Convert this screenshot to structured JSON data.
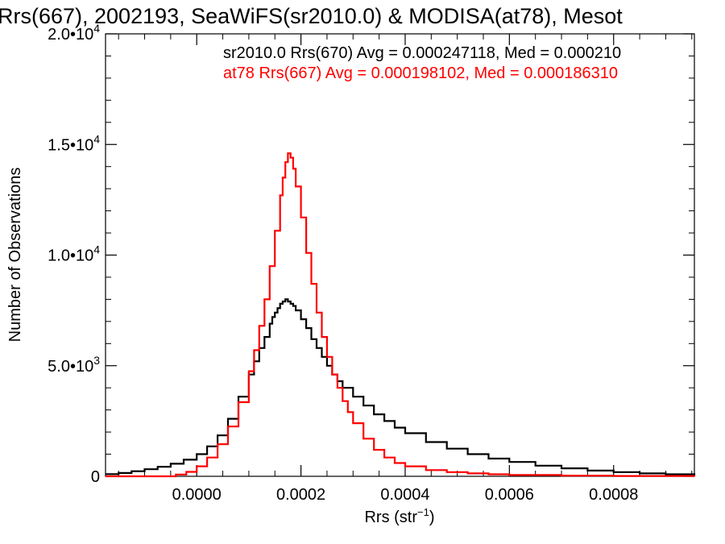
{
  "chart_data": {
    "type": "line",
    "title": "Rrs(667), 2002193, SeaWiFS(sr2010.0) & MODISA(at78), Mesot",
    "xlabel": "Rrs (str",
    "xlabel_sup": "−1",
    "xlabel_close": ")",
    "ylabel": "Number of Observations",
    "xlim": [
      -0.000175,
      0.000955
    ],
    "ylim": [
      0,
      20000
    ],
    "grid": false,
    "x_ticks": [
      {
        "value": 0.0,
        "label": "0.0000"
      },
      {
        "value": 0.0002,
        "label": "0.0002"
      },
      {
        "value": 0.0004,
        "label": "0.0004"
      },
      {
        "value": 0.0006,
        "label": "0.0006"
      },
      {
        "value": 0.0008,
        "label": "0.0008"
      }
    ],
    "y_ticks": [
      {
        "value": 0,
        "mant": "0",
        "exp": ""
      },
      {
        "value": 5000,
        "mant": "5.0•10",
        "exp": "3"
      },
      {
        "value": 10000,
        "mant": "1.0•10",
        "exp": "4"
      },
      {
        "value": 15000,
        "mant": "1.5•10",
        "exp": "4"
      },
      {
        "value": 20000,
        "mant": "2.0•10",
        "exp": "4"
      }
    ],
    "annotations": [
      {
        "text": "sr2010.0 Rrs(670) Avg = 0.000247118, Med = 0.000210",
        "color": "#000000"
      },
      {
        "text": "at78 Rrs(667) Avg = 0.000198102, Med = 0.000186310",
        "color": "#ff0000"
      }
    ],
    "series": [
      {
        "color": "#000000",
        "x": [
          -0.000175,
          -0.00015,
          -0.000125,
          -0.0001,
          -7.5e-05,
          -5e-05,
          -2.5e-05,
          0.0,
          2e-05,
          4e-05,
          6e-05,
          8e-05,
          0.0001,
          0.00011,
          0.00012,
          0.00013,
          0.00014,
          0.000145,
          0.00015,
          0.000155,
          0.00016,
          0.000165,
          0.00017,
          0.000175,
          0.00018,
          0.000185,
          0.00019,
          0.0002,
          0.00021,
          0.00022,
          0.00023,
          0.00024,
          0.00025,
          0.00026,
          0.00027,
          0.00028,
          0.0003,
          0.00032,
          0.00034,
          0.00036,
          0.00038,
          0.0004,
          0.00044,
          0.00048,
          0.00052,
          0.00056,
          0.0006,
          0.00065,
          0.0007,
          0.00075,
          0.0008,
          0.00085,
          0.0009,
          0.000955
        ],
        "y": [
          100,
          150,
          230,
          320,
          430,
          570,
          750,
          1000,
          1350,
          1850,
          2600,
          3600,
          4600,
          5200,
          5800,
          6300,
          6900,
          7200,
          7400,
          7600,
          7800,
          7900,
          8000,
          7900,
          7800,
          7700,
          7500,
          7100,
          6700,
          6200,
          5800,
          5400,
          5000,
          4600,
          4300,
          4000,
          3600,
          3200,
          2800,
          2500,
          2200,
          1950,
          1550,
          1250,
          1000,
          800,
          650,
          480,
          360,
          260,
          190,
          130,
          90,
          60
        ]
      },
      {
        "color": "#ff0000",
        "x": [
          -0.000175,
          -0.0001,
          -6e-05,
          -4e-05,
          -2e-05,
          0.0,
          2e-05,
          4e-05,
          6e-05,
          8e-05,
          0.0001,
          0.00011,
          0.00012,
          0.00013,
          0.00014,
          0.00015,
          0.00016,
          0.000165,
          0.00017,
          0.000175,
          0.00018,
          0.000185,
          0.00019,
          0.0002,
          0.00021,
          0.00022,
          0.00023,
          0.00024,
          0.00025,
          0.00026,
          0.00027,
          0.00028,
          0.00029,
          0.0003,
          0.00032,
          0.00034,
          0.00036,
          0.00038,
          0.0004,
          0.00044,
          0.00048,
          0.00052,
          0.00056,
          0.0006,
          0.0007,
          0.0008,
          0.000955
        ],
        "y": [
          0,
          0,
          0,
          80,
          200,
          450,
          850,
          1450,
          2250,
          3350,
          4750,
          5700,
          6800,
          8000,
          9500,
          11100,
          12700,
          13500,
          14200,
          14600,
          14400,
          13900,
          13100,
          11700,
          10100,
          8700,
          7400,
          6300,
          5400,
          4600,
          4000,
          3400,
          2900,
          2400,
          1700,
          1200,
          850,
          600,
          450,
          280,
          190,
          130,
          90,
          60,
          30,
          15,
          5
        ]
      }
    ]
  }
}
